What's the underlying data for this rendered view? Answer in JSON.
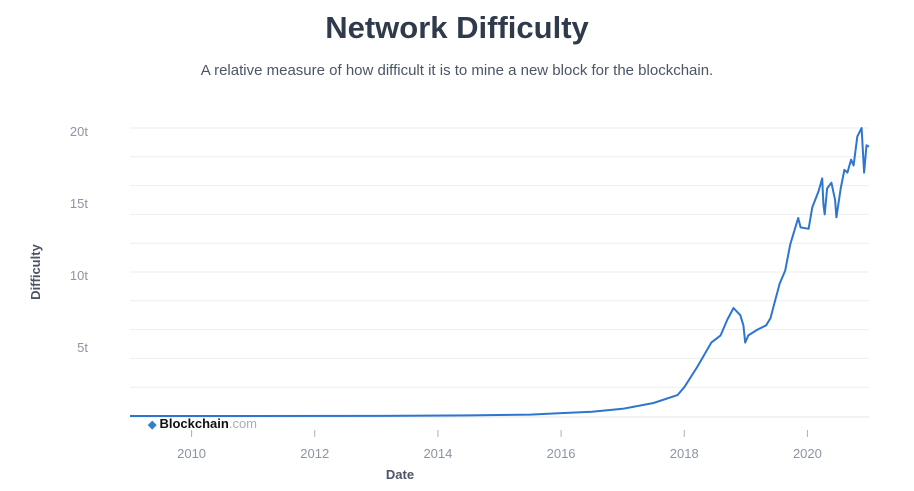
{
  "chart_data": {
    "type": "line",
    "title": "Network Difficulty",
    "subtitle": "A relative measure of how difficult it is to mine a new block for the blockchain.",
    "xlabel": "Date",
    "ylabel": "Difficulty",
    "xlim": [
      2009.0,
      2021.0
    ],
    "ylim": [
      0,
      20
    ],
    "grid": true,
    "legend": "none",
    "line_color": "#2f75d0",
    "x_ticks": [
      {
        "value": 2010,
        "label": "2010"
      },
      {
        "value": 2012,
        "label": "2012"
      },
      {
        "value": 2014,
        "label": "2014"
      },
      {
        "value": 2016,
        "label": "2016"
      },
      {
        "value": 2018,
        "label": "2018"
      },
      {
        "value": 2020,
        "label": "2020"
      }
    ],
    "y_ticks": [
      {
        "value": 5,
        "label": "5t"
      },
      {
        "value": 10,
        "label": "10t"
      },
      {
        "value": 15,
        "label": "15t"
      },
      {
        "value": 20,
        "label": "20t"
      }
    ],
    "series": [
      {
        "name": "Difficulty (trillions)",
        "x": [
          2009.0,
          2013.0,
          2014.5,
          2015.5,
          2016.0,
          2016.5,
          2017.0,
          2017.5,
          2017.89,
          2018.0,
          2018.21,
          2018.44,
          2018.59,
          2018.7,
          2018.8,
          2018.91,
          2018.96,
          2018.99,
          2019.04,
          2019.19,
          2019.33,
          2019.4,
          2019.45,
          2019.55,
          2019.64,
          2019.72,
          2019.79,
          2019.85,
          2019.89,
          2020.02,
          2020.08,
          2020.18,
          2020.24,
          2020.26,
          2020.28,
          2020.32,
          2020.39,
          2020.45,
          2020.47,
          2020.54,
          2020.6,
          2020.65,
          2020.71,
          2020.75,
          2020.81,
          2020.88,
          2020.92,
          2020.96,
          2021.0
        ],
        "y": [
          0,
          0.01,
          0.04,
          0.1,
          0.2,
          0.3,
          0.5,
          0.9,
          1.45,
          2.0,
          3.4,
          5.1,
          5.6,
          6.7,
          7.5,
          7.0,
          6.3,
          5.1,
          5.6,
          6.0,
          6.3,
          6.8,
          7.6,
          9.2,
          10.1,
          11.9,
          12.9,
          13.75,
          13.1,
          13.0,
          14.5,
          15.6,
          16.5,
          14.7,
          14.0,
          15.8,
          16.2,
          15.0,
          13.8,
          15.8,
          17.1,
          16.9,
          17.8,
          17.4,
          19.4,
          20.0,
          16.9,
          18.8,
          18.7
        ]
      }
    ]
  },
  "brand": {
    "name": "Blockchain",
    "domain": ".com"
  }
}
